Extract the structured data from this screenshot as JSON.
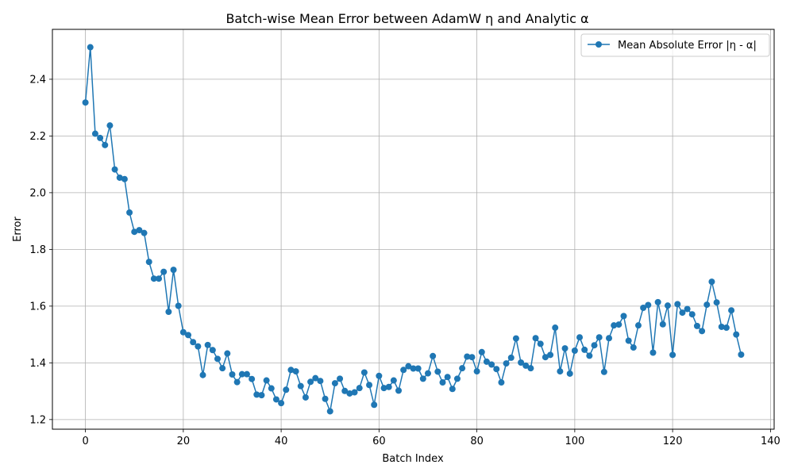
{
  "chart_data": {
    "type": "line",
    "title": "Batch-wise Mean Error between AdamW η and Analytic α",
    "xlabel": "Batch Index",
    "ylabel": "Error",
    "xlim": [
      -6.75,
      140.75
    ],
    "ylim": [
      1.166,
      2.576
    ],
    "xticks": [
      0,
      20,
      40,
      60,
      80,
      100,
      120,
      140
    ],
    "yticks": [
      1.2,
      1.4,
      1.6,
      1.8,
      2.0,
      2.2,
      2.4
    ],
    "ytick_labels": [
      "1.2",
      "1.4",
      "1.6",
      "1.8",
      "2.0",
      "2.2",
      "2.4"
    ],
    "grid": true,
    "legend_position": "top-right",
    "series": [
      {
        "name": "Mean Absolute Error |η - α|",
        "color": "#1f77b4",
        "marker": "circle",
        "x": [
          0,
          1,
          2,
          3,
          4,
          5,
          6,
          7,
          8,
          9,
          10,
          11,
          12,
          13,
          14,
          15,
          16,
          17,
          18,
          19,
          20,
          21,
          22,
          23,
          24,
          25,
          26,
          27,
          28,
          29,
          30,
          31,
          32,
          33,
          34,
          35,
          36,
          37,
          38,
          39,
          40,
          41,
          42,
          43,
          44,
          45,
          46,
          47,
          48,
          49,
          50,
          51,
          52,
          53,
          54,
          55,
          56,
          57,
          58,
          59,
          60,
          61,
          62,
          63,
          64,
          65,
          66,
          67,
          68,
          69,
          70,
          71,
          72,
          73,
          74,
          75,
          76,
          77,
          78,
          79,
          80,
          81,
          82,
          83,
          84,
          85,
          86,
          87,
          88,
          89,
          90,
          91,
          92,
          93,
          94,
          95,
          96,
          97,
          98,
          99,
          100,
          101,
          102,
          103,
          104,
          105,
          106,
          107,
          108,
          109,
          110,
          111,
          112,
          113,
          114,
          115,
          116,
          117,
          118,
          119,
          120,
          121,
          122,
          123,
          124,
          125,
          126,
          127,
          128,
          129,
          130,
          131,
          132,
          133,
          134
        ],
        "y": [
          2.318,
          2.513,
          2.208,
          2.193,
          2.168,
          2.237,
          2.082,
          2.053,
          2.048,
          1.93,
          1.862,
          1.868,
          1.858,
          1.756,
          1.697,
          1.697,
          1.721,
          1.58,
          1.728,
          1.601,
          1.508,
          1.498,
          1.473,
          1.458,
          1.357,
          1.463,
          1.445,
          1.414,
          1.381,
          1.433,
          1.359,
          1.332,
          1.36,
          1.36,
          1.343,
          1.288,
          1.286,
          1.338,
          1.31,
          1.271,
          1.258,
          1.305,
          1.375,
          1.37,
          1.318,
          1.278,
          1.333,
          1.346,
          1.336,
          1.273,
          1.229,
          1.328,
          1.344,
          1.301,
          1.292,
          1.296,
          1.311,
          1.366,
          1.322,
          1.252,
          1.354,
          1.311,
          1.315,
          1.338,
          1.302,
          1.375,
          1.388,
          1.38,
          1.38,
          1.344,
          1.363,
          1.424,
          1.369,
          1.331,
          1.35,
          1.308,
          1.344,
          1.381,
          1.422,
          1.42,
          1.37,
          1.438,
          1.404,
          1.394,
          1.378,
          1.331,
          1.398,
          1.418,
          1.486,
          1.401,
          1.39,
          1.381,
          1.487,
          1.467,
          1.42,
          1.428,
          1.524,
          1.37,
          1.451,
          1.362,
          1.443,
          1.49,
          1.446,
          1.425,
          1.462,
          1.49,
          1.368,
          1.487,
          1.532,
          1.535,
          1.565,
          1.478,
          1.454,
          1.532,
          1.594,
          1.604,
          1.436,
          1.614,
          1.536,
          1.602,
          1.428,
          1.607,
          1.577,
          1.59,
          1.571,
          1.53,
          1.512,
          1.605,
          1.686,
          1.613,
          1.527,
          1.524,
          1.585,
          1.5,
          1.429
        ]
      }
    ]
  }
}
